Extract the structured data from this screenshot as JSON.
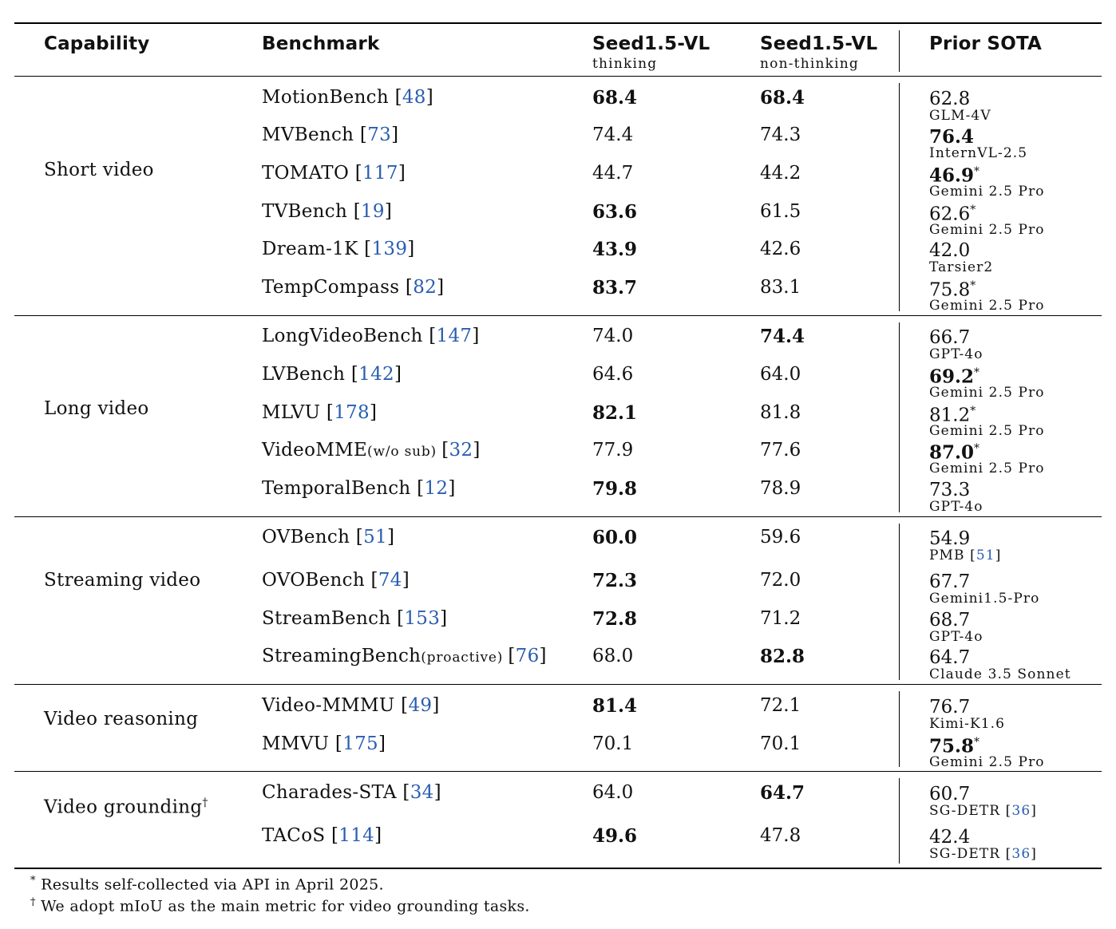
{
  "header": {
    "capability": "Capability",
    "benchmark": "Benchmark",
    "col1_title": "Seed1.5-VL",
    "col1_sub": "thinking",
    "col2_title": "Seed1.5-VL",
    "col2_sub": "non-thinking",
    "col3_title": "Prior SOTA"
  },
  "groups": [
    {
      "capability": "Short video",
      "rows": [
        {
          "name": "MotionBench ",
          "ref": "48",
          "thinking": "68.4",
          "non_thinking": "68.4",
          "sota": "62.8",
          "sota_model": "GLM-4V"
        },
        {
          "name": "MVBench ",
          "ref": "73",
          "thinking": "74.4",
          "non_thinking": "74.3",
          "sota": "76.4",
          "sota_model": "InternVL-2.5"
        },
        {
          "name": "TOMATO ",
          "ref": "117",
          "thinking": "44.7",
          "non_thinking": "44.2",
          "sota": "46.9",
          "sota_model": "Gemini 2.5 Pro"
        },
        {
          "name": "TVBench ",
          "ref": "19",
          "thinking": "63.6",
          "non_thinking": "61.5",
          "sota": "62.6",
          "sota_model": "Gemini 2.5 Pro"
        },
        {
          "name": "Dream-1K ",
          "ref": "139",
          "thinking": "43.9",
          "non_thinking": "42.6",
          "sota": "42.0",
          "sota_model": "Tarsier2"
        },
        {
          "name": "TempCompass ",
          "ref": "82",
          "thinking": "83.7",
          "non_thinking": "83.1",
          "sota": "75.8",
          "sota_model": "Gemini 2.5 Pro"
        }
      ]
    },
    {
      "capability": "Long video",
      "rows": [
        {
          "name": "LongVideoBench ",
          "ref": "147",
          "thinking": "74.0",
          "non_thinking": "74.4",
          "sota": "66.7",
          "sota_model": "GPT-4o"
        },
        {
          "name": "LVBench ",
          "ref": "142",
          "thinking": "64.6",
          "non_thinking": "64.0",
          "sota": "69.2",
          "sota_model": "Gemini 2.5 Pro"
        },
        {
          "name": "MLVU ",
          "ref": "178",
          "thinking": "82.1",
          "non_thinking": "81.8",
          "sota": "81.2",
          "sota_model": "Gemini 2.5 Pro"
        },
        {
          "name": "VideoMME",
          "suffix": "(w/o sub) ",
          "ref": "32",
          "thinking": "77.9",
          "non_thinking": "77.6",
          "sota": "87.0",
          "sota_model": "Gemini 2.5 Pro"
        },
        {
          "name": "TemporalBench ",
          "ref": "12",
          "thinking": "79.8",
          "non_thinking": "78.9",
          "sota": "73.3",
          "sota_model": "GPT-4o"
        }
      ]
    },
    {
      "capability": "Streaming video",
      "rows": [
        {
          "name": "OVBench ",
          "ref": "51",
          "thinking": "60.0",
          "non_thinking": "59.6",
          "sota": "54.9",
          "sota_model": "PMB ",
          "sota_model_ref": "51"
        },
        {
          "name": "OVOBench ",
          "ref": "74",
          "thinking": "72.3",
          "non_thinking": "72.0",
          "sota": "67.7",
          "sota_model": "Gemini1.5-Pro"
        },
        {
          "name": "StreamBench ",
          "ref": "153",
          "thinking": "72.8",
          "non_thinking": "71.2",
          "sota": "68.7",
          "sota_model": "GPT-4o"
        },
        {
          "name": "StreamingBench",
          "suffix": "(proactive) ",
          "ref": "76",
          "thinking": "68.0",
          "non_thinking": "82.8",
          "sota": "64.7",
          "sota_model": "Claude 3.5 Sonnet"
        }
      ]
    },
    {
      "capability": "Video reasoning",
      "rows": [
        {
          "name": "Video-MMMU ",
          "ref": "49",
          "thinking": "81.4",
          "non_thinking": "72.1",
          "sota": "76.7",
          "sota_model": "Kimi-K1.6"
        },
        {
          "name": "MMVU ",
          "ref": "175",
          "thinking": "70.1",
          "non_thinking": "70.1",
          "sota": "75.8",
          "sota_model": "Gemini 2.5 Pro"
        }
      ]
    },
    {
      "capability": "Video grounding",
      "capability_mark": "†",
      "rows": [
        {
          "name": "Charades-STA ",
          "ref": "34",
          "thinking": "64.0",
          "non_thinking": "64.7",
          "sota": "60.7",
          "sota_model": "SG-DETR ",
          "sota_model_ref": "36"
        },
        {
          "name": "TACoS ",
          "ref": "114",
          "thinking": "49.6",
          "non_thinking": "47.8",
          "sota": "42.4",
          "sota_model": "SG-DETR ",
          "sota_model_ref": "36"
        }
      ]
    }
  ],
  "footnotes": [
    {
      "mark": "*",
      "text": " Results self-collected via API in April 2025."
    },
    {
      "mark": "†",
      "text": " We adopt mIoU as the main metric for video grounding tasks."
    }
  ]
}
